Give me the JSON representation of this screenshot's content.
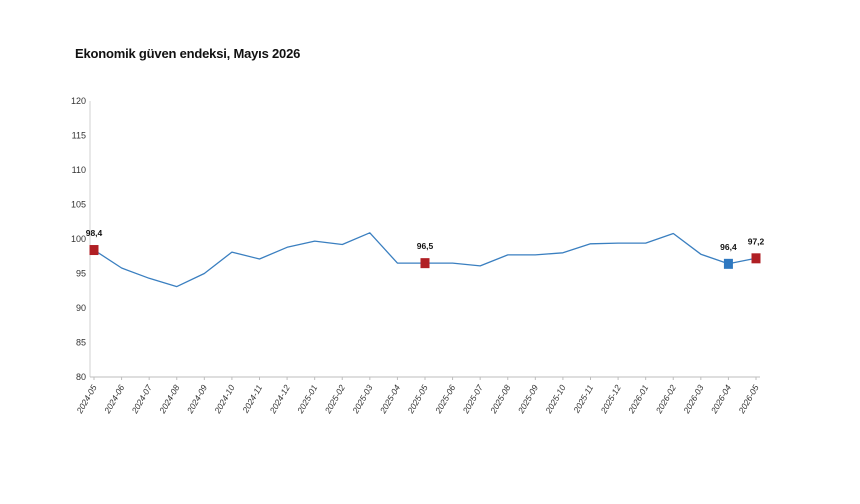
{
  "chart_data": {
    "type": "line",
    "title": "Ekonomik güven endeksi, Mayıs 2026",
    "xlabel": "",
    "ylabel": "",
    "ylim": [
      80,
      120
    ],
    "yticks": [
      "80",
      "85",
      "90",
      "95",
      "100",
      "105",
      "110",
      "115",
      "120"
    ],
    "categories": [
      "2024-05",
      "2024-06",
      "2024-07",
      "2024-08",
      "2024-09",
      "2024-10",
      "2024-11",
      "2024-12",
      "2025-01",
      "2025-02",
      "2025-03",
      "2025-04",
      "2025-05",
      "2025-06",
      "2025-07",
      "2025-08",
      "2025-09",
      "2025-10",
      "2025-11",
      "2025-12",
      "2026-01",
      "2026-02",
      "2026-03",
      "2026-04",
      "2026-05"
    ],
    "series": [
      {
        "values": [
          98.4,
          95.8,
          94.3,
          93.1,
          95.0,
          98.1,
          97.1,
          98.8,
          99.7,
          99.2,
          100.9,
          96.5,
          96.5,
          96.5,
          96.1,
          97.7,
          97.7,
          98.0,
          99.3,
          99.4,
          99.4,
          100.8,
          97.8,
          96.4,
          97.2
        ],
        "color": "#3a7fc0"
      }
    ],
    "highlights": [
      {
        "index": 0,
        "label": "98,4",
        "color": "#b01f24"
      },
      {
        "index": 12,
        "label": "96,5",
        "color": "#b01f24"
      },
      {
        "index": 23,
        "label": "96,4",
        "color": "#2e78c0"
      },
      {
        "index": 24,
        "label": "97,2",
        "color": "#b01f24"
      }
    ],
    "grid": false,
    "legend": "none"
  }
}
